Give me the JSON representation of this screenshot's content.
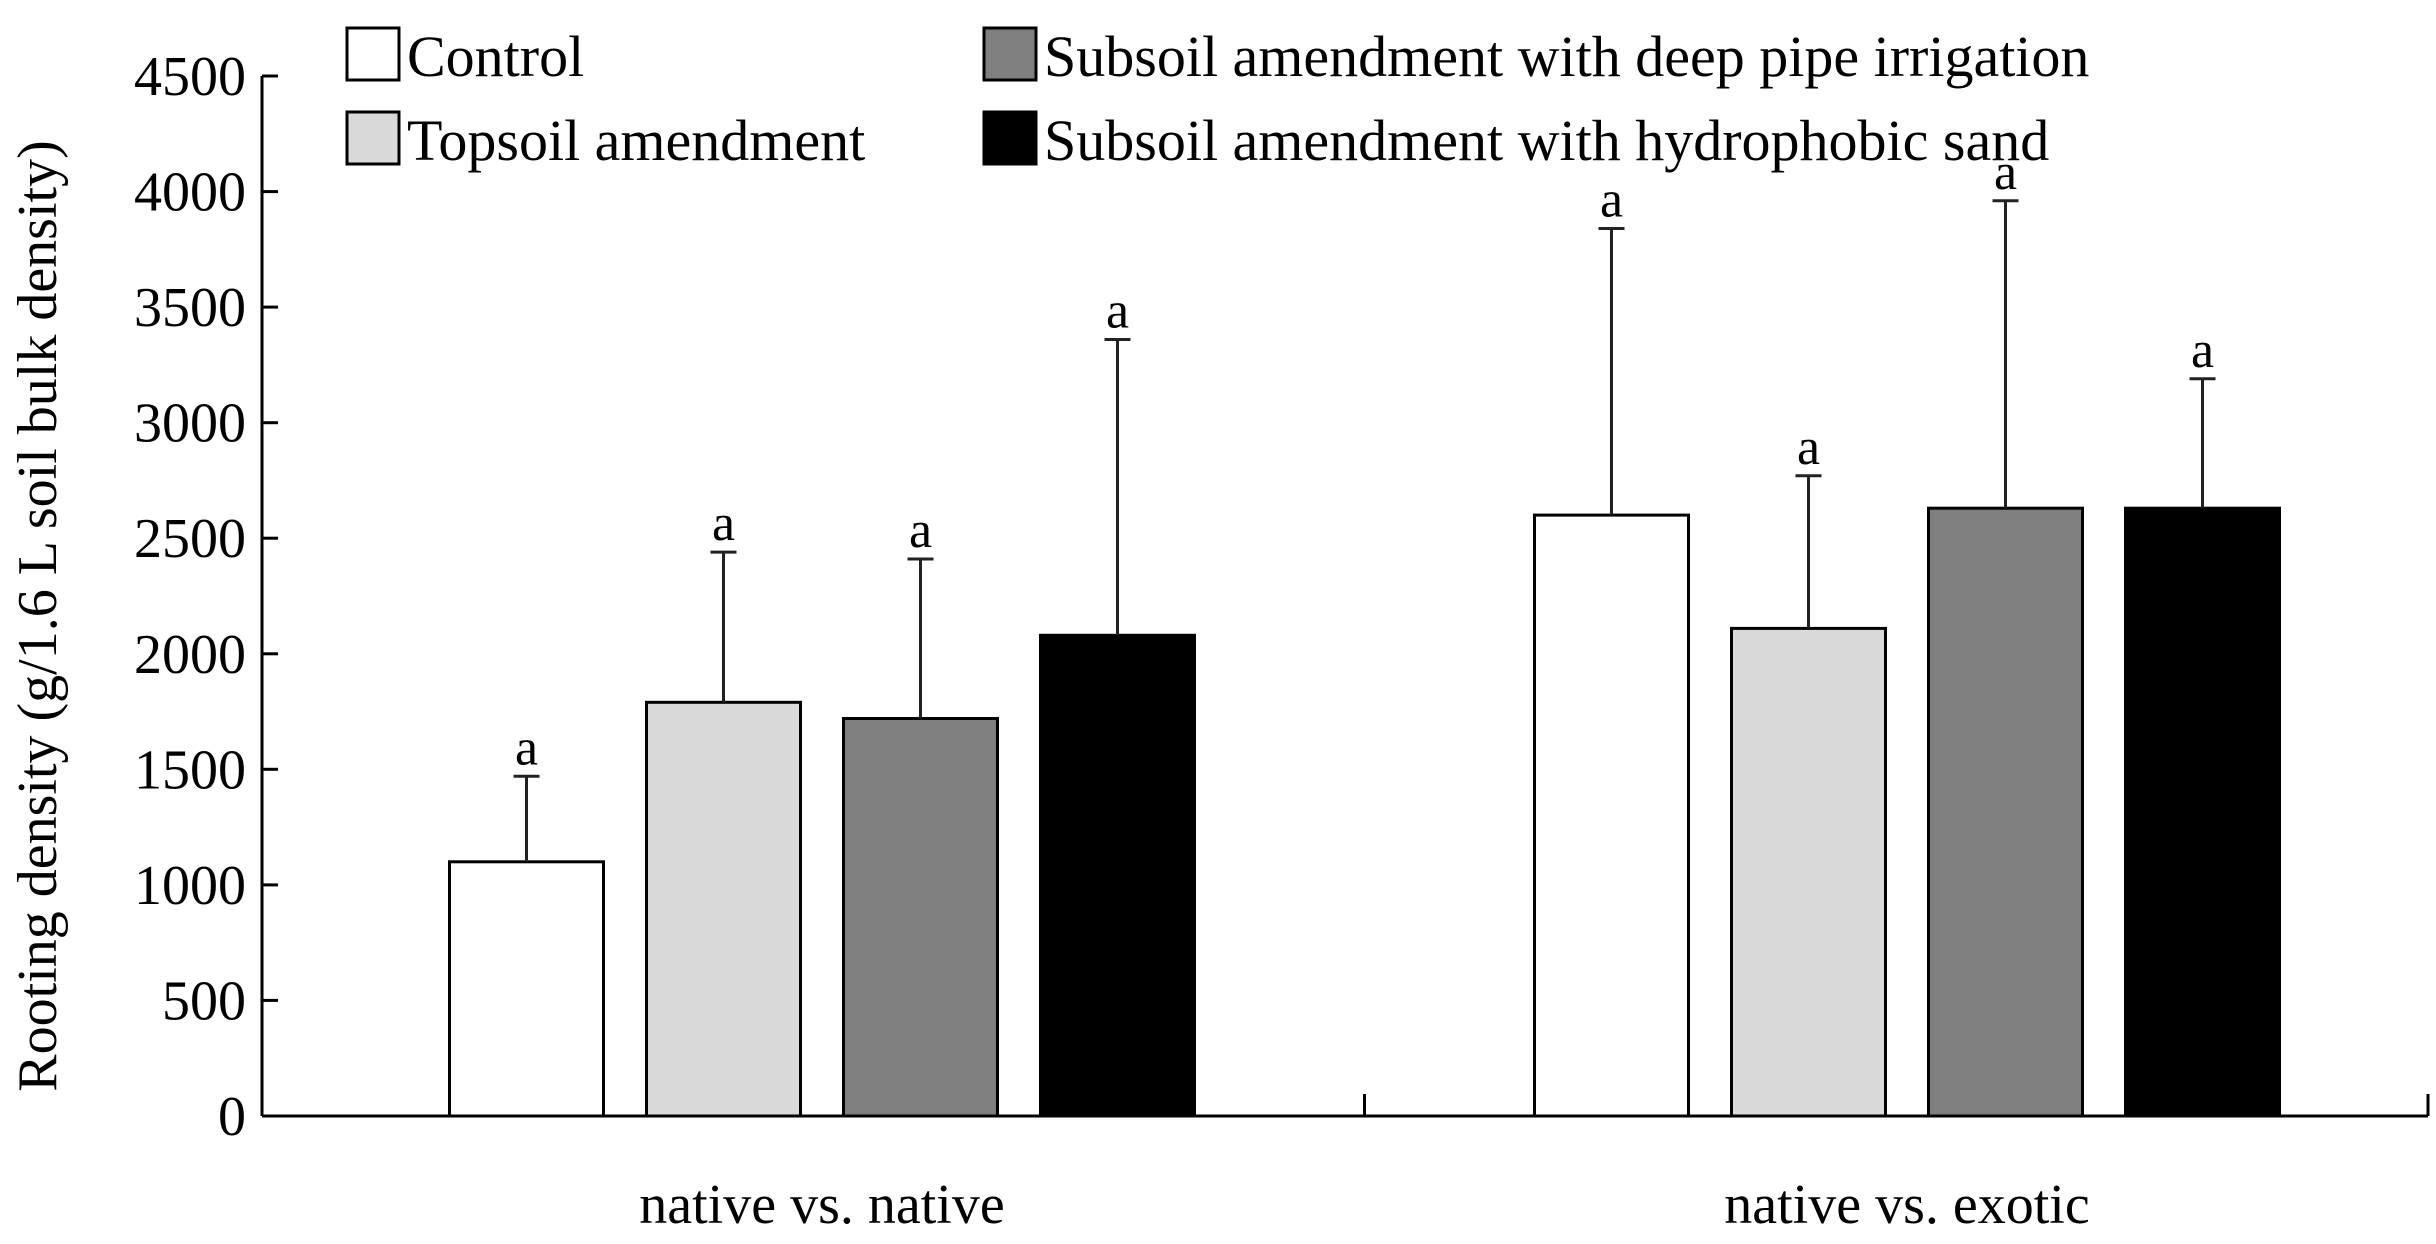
{
  "chart_data": {
    "type": "bar",
    "title": "",
    "xlabel": "",
    "ylabel": "Rooting density (g/1.6 L soil bulk density)",
    "ylim": [
      0,
      4500
    ],
    "yticks": [
      0,
      500,
      1000,
      1500,
      2000,
      2500,
      3000,
      3500,
      4000,
      4500
    ],
    "categories": [
      "native vs. native",
      "native vs. exotic"
    ],
    "series": [
      {
        "name": "Control",
        "color": "#ffffff",
        "values": [
          1100,
          2600
        ],
        "errors": [
          370,
          1240
        ],
        "labels": [
          "a",
          "a"
        ]
      },
      {
        "name": "Topsoil amendment",
        "color": "#d9d9d9",
        "values": [
          1790,
          2110
        ],
        "errors": [
          650,
          660
        ],
        "labels": [
          "a",
          "a"
        ]
      },
      {
        "name": "Subsoil amendment with deep pipe irrigation",
        "color": "#808080",
        "values": [
          1720,
          2630
        ],
        "errors": [
          690,
          1330
        ],
        "labels": [
          "a",
          "a"
        ]
      },
      {
        "name": "Subsoil amendment with hydrophobic sand",
        "color": "#000000",
        "values": [
          2080,
          2630
        ],
        "errors": [
          1280,
          560
        ],
        "labels": [
          "a",
          "a"
        ]
      }
    ],
    "grid": false,
    "legend_position": "top"
  }
}
